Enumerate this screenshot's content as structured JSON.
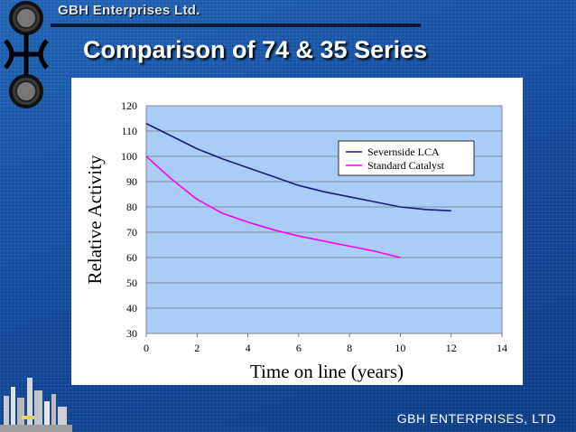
{
  "header": {
    "company": "GBH Enterprises Ltd.",
    "title": "Comparison of 74 & 35 Series"
  },
  "footer": {
    "text": "GBH ENTERPRISES, LTD"
  },
  "chart_data": {
    "type": "line",
    "title": "",
    "xlabel": "Time on line (years)",
    "ylabel": "Relative Activity",
    "xlim": [
      0,
      14
    ],
    "ylim": [
      30,
      120
    ],
    "x_ticks": [
      0,
      2,
      4,
      6,
      8,
      10,
      12,
      14
    ],
    "y_ticks": [
      30,
      40,
      50,
      60,
      70,
      80,
      90,
      100,
      110,
      120
    ],
    "grid": true,
    "legend_position": "top-right",
    "series": [
      {
        "name": "Severnside LCA",
        "color": "#1a1a80",
        "x": [
          0,
          1,
          2,
          3,
          4,
          5,
          6,
          7,
          8,
          9,
          10,
          11,
          12
        ],
        "y": [
          113,
          108,
          103,
          99,
          95.5,
          92,
          88.5,
          86,
          84,
          82,
          80,
          79,
          78.5
        ]
      },
      {
        "name": "Standard Catalyst",
        "color": "#ff00ff",
        "x": [
          0,
          1,
          2,
          3,
          4,
          5,
          6,
          7,
          8,
          9,
          10
        ],
        "y": [
          100,
          91,
          83,
          77.5,
          74,
          71,
          68.5,
          66.5,
          64.5,
          62.5,
          60
        ]
      }
    ]
  }
}
